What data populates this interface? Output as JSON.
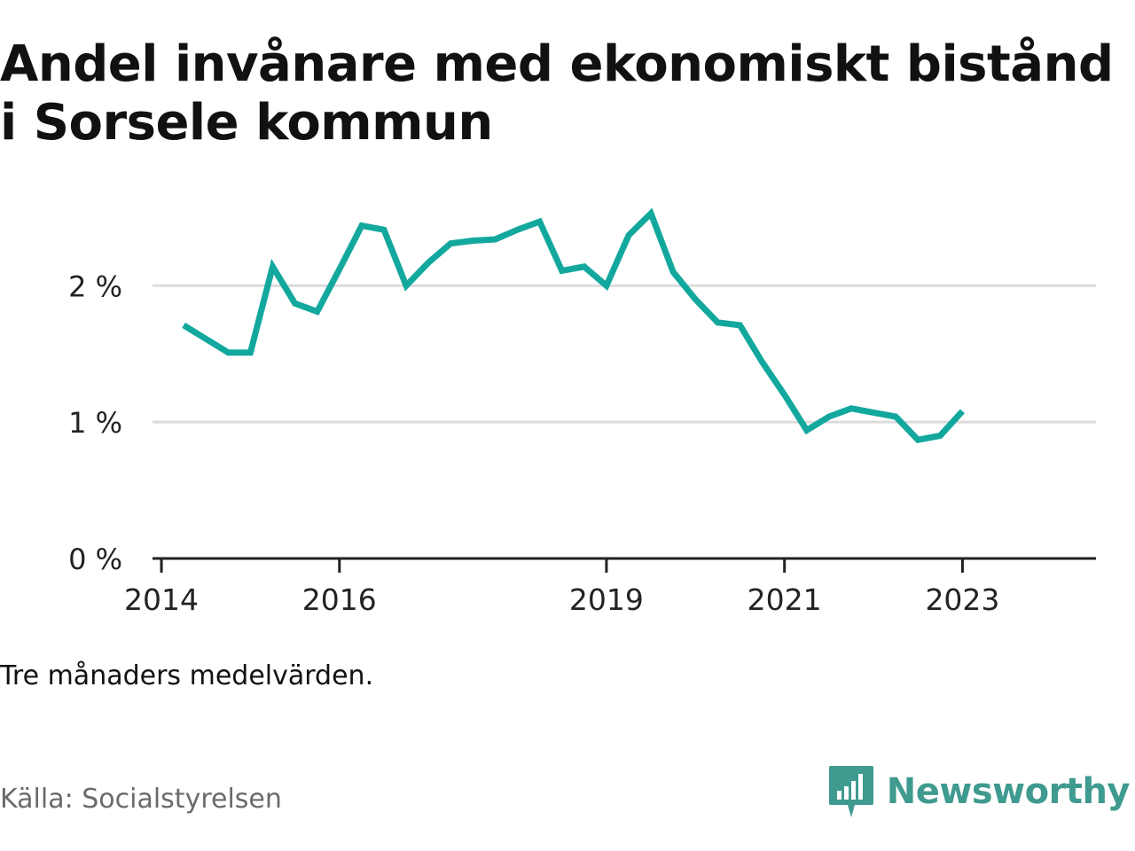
{
  "title": "Andel invånare med ekonomiskt bistånd i Sorsele kommun",
  "note": "Tre månaders medelvärden.",
  "source": "Källa: Socialstyrelsen",
  "brand": {
    "name": "Newsworthy",
    "color": "#3f9a8f"
  },
  "chart_data": {
    "type": "line",
    "title": "Andel invånare med ekonomiskt bistånd i Sorsele kommun",
    "xlabel": "",
    "ylabel": "",
    "x_ticks": [
      2014,
      2016,
      2019,
      2021,
      2023
    ],
    "y_ticks": [
      {
        "value": 0,
        "label": "0 %"
      },
      {
        "value": 1,
        "label": "1 %"
      },
      {
        "value": 2,
        "label": "2 %"
      }
    ],
    "ylim": [
      0,
      2.6
    ],
    "xlim": [
      2013.9,
      2024.5
    ],
    "grid": true,
    "line_color": "#13a89e",
    "series": [
      {
        "x": [
          2014.25,
          2014.5,
          2014.75,
          2015.0,
          2015.25,
          2015.5,
          2015.75,
          2016.0,
          2016.25,
          2016.5,
          2016.75,
          2017.0,
          2017.25,
          2017.5,
          2017.75,
          2018.0,
          2018.25,
          2018.5,
          2018.75,
          2019.0,
          2019.25,
          2019.5,
          2019.75,
          2020.0,
          2020.25,
          2020.5,
          2020.75,
          2021.0,
          2021.25,
          2021.5,
          2021.75,
          2022.0,
          2022.25,
          2022.5,
          2022.75,
          2023.0
        ],
        "y": [
          1.71,
          1.61,
          1.51,
          1.51,
          2.14,
          1.87,
          1.81,
          2.12,
          2.44,
          2.41,
          2.0,
          2.17,
          2.31,
          2.33,
          2.34,
          2.41,
          2.47,
          2.11,
          2.14,
          2.0,
          2.37,
          2.53,
          2.1,
          1.9,
          1.73,
          1.71,
          1.44,
          1.2,
          0.94,
          1.04,
          1.1,
          1.07,
          1.04,
          0.87,
          0.9,
          1.08
        ]
      }
    ]
  }
}
